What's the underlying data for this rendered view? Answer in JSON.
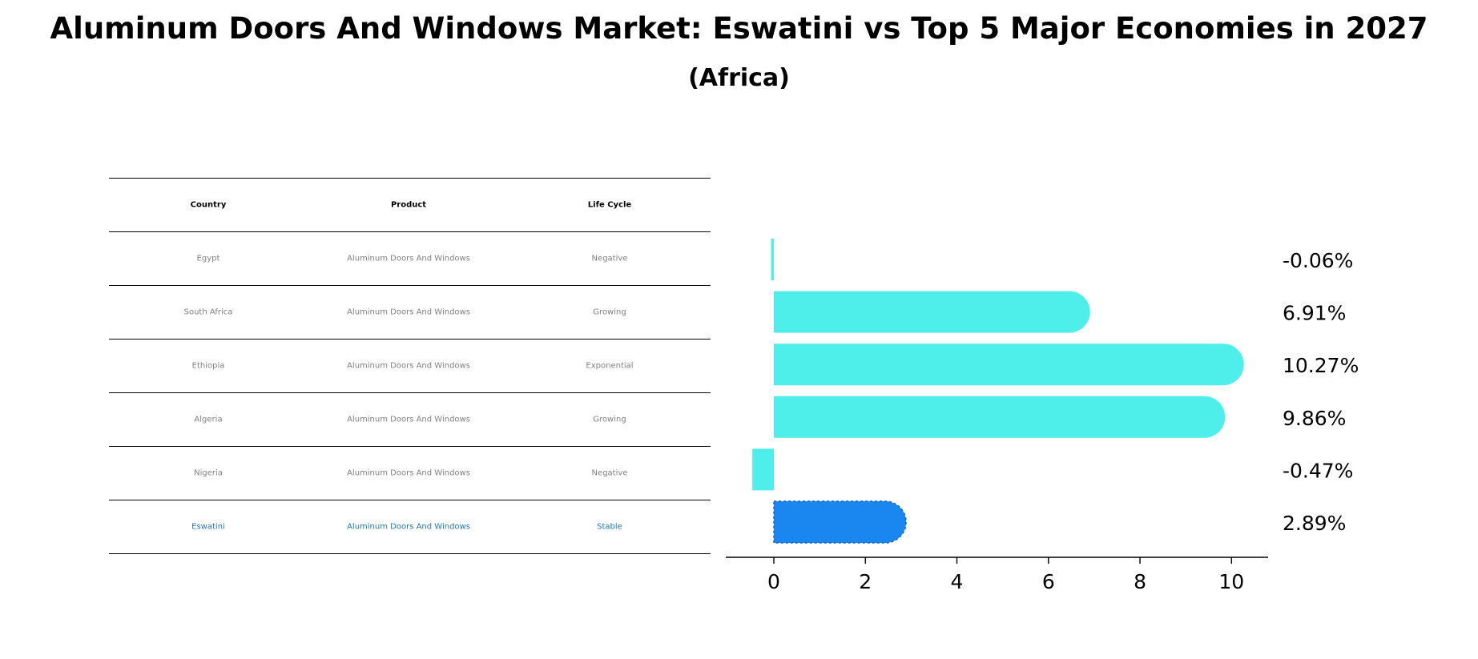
{
  "title": "Aluminum Doors And Windows Market: Eswatini vs Top 5 Major Economies in 2027",
  "subtitle": "(Africa)",
  "table": {
    "headers": [
      "Country",
      "Product",
      "Life Cycle"
    ],
    "rows": [
      [
        "Egypt",
        "Aluminum Doors And Windows",
        "Negative"
      ],
      [
        "South Africa",
        "Aluminum Doors And Windows",
        "Growing"
      ],
      [
        "Ethiopia",
        "Aluminum Doors And Windows",
        "Exponential"
      ],
      [
        "Algeria",
        "Aluminum Doors And Windows",
        "Growing"
      ],
      [
        "Nigeria",
        "Aluminum Doors And Windows",
        "Negative"
      ],
      [
        "Eswatini",
        "Aluminum Doors And Windows",
        "Stable"
      ]
    ],
    "highlight_row": 5
  },
  "chart_data": {
    "type": "bar",
    "orientation": "horizontal",
    "categories": [
      "Egypt",
      "South Africa",
      "Ethiopia",
      "Algeria",
      "Nigeria",
      "Eswatini"
    ],
    "values": [
      -0.06,
      6.91,
      10.27,
      9.86,
      -0.47,
      2.89
    ],
    "labels": [
      "-0.06%",
      "6.91%",
      "10.27%",
      "9.86%",
      "-0.47%",
      "2.89%"
    ],
    "xlim": [
      -1.05,
      10.8
    ],
    "xticks": [
      0,
      2,
      4,
      6,
      8,
      10
    ],
    "grid": false,
    "highlight_index": 5,
    "colors": {
      "default": "#4EEEEB",
      "highlight": "#1A86F0"
    }
  }
}
